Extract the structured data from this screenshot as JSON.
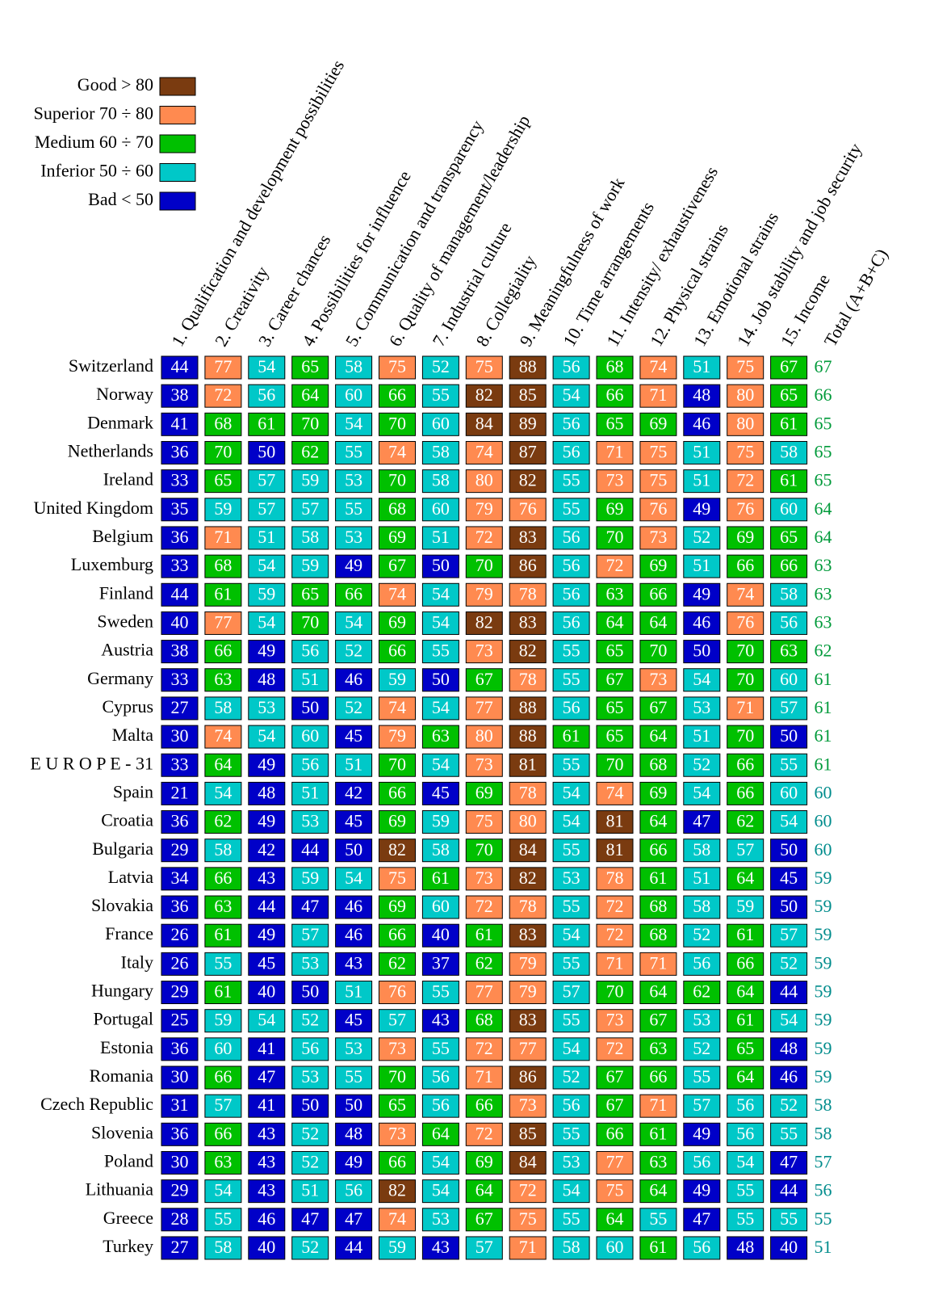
{
  "legend": [
    {
      "label": "Good > 80",
      "min": 80,
      "color": "#7a3b10"
    },
    {
      "label": "Superior 70 ÷ 80",
      "min": 70,
      "color": "#ff8a50"
    },
    {
      "label": "Medium 60 ÷ 70",
      "min": 60,
      "color": "#00c000"
    },
    {
      "label": "Inferior 50 ÷ 60",
      "min": 50,
      "color": "#00c8c8"
    },
    {
      "label": "Bad < 50",
      "color": "#0000c8"
    }
  ],
  "columns": [
    "1. Qualification and development possibilities",
    "2. Creativity",
    "3. Career chances",
    "4. Possibilities for influence",
    "5. Communication and transparency",
    "6. Quality of management/leadership",
    "7. Industrial culture",
    "8. Collegiality",
    "9. Meaningfulness of work",
    "10. Time arrangements",
    "11. Intensity/ exhaustiveness",
    "12. Physical strains",
    "13. Emotional strains",
    "14. Job stability and job security",
    "15. Income",
    "Total (A+B+C)"
  ],
  "total_colors": [
    {
      "min": 60,
      "color": "#009a3a"
    },
    {
      "color": "#008c8c"
    }
  ],
  "rows": [
    {
      "name": "Switzerland",
      "values": [
        44,
        77,
        54,
        65,
        58,
        75,
        52,
        75,
        88,
        56,
        68,
        74,
        51,
        75,
        67
      ],
      "total": 67
    },
    {
      "name": "Norway",
      "values": [
        38,
        72,
        56,
        64,
        60,
        66,
        55,
        82,
        85,
        54,
        66,
        71,
        48,
        80,
        65
      ],
      "total": 66
    },
    {
      "name": "Denmark",
      "values": [
        41,
        68,
        61,
        70,
        54,
        70,
        60,
        84,
        89,
        56,
        65,
        69,
        46,
        80,
        61
      ],
      "total": 65
    },
    {
      "name": "Netherlands",
      "values": [
        36,
        70,
        50,
        62,
        55,
        74,
        58,
        74,
        87,
        56,
        71,
        75,
        51,
        75,
        58
      ],
      "total": 65
    },
    {
      "name": "Ireland",
      "values": [
        33,
        65,
        57,
        59,
        53,
        70,
        58,
        80,
        82,
        55,
        73,
        75,
        51,
        72,
        61
      ],
      "total": 65
    },
    {
      "name": "United Kingdom",
      "values": [
        35,
        59,
        57,
        57,
        55,
        68,
        60,
        79,
        76,
        55,
        69,
        76,
        49,
        76,
        60
      ],
      "total": 64
    },
    {
      "name": "Belgium",
      "values": [
        36,
        71,
        51,
        58,
        53,
        69,
        51,
        72,
        83,
        56,
        70,
        73,
        52,
        69,
        65
      ],
      "total": 64
    },
    {
      "name": "Luxemburg",
      "values": [
        33,
        68,
        54,
        59,
        49,
        67,
        50,
        70,
        86,
        56,
        72,
        69,
        51,
        66,
        66
      ],
      "total": 63
    },
    {
      "name": "Finland",
      "values": [
        44,
        61,
        59,
        65,
        66,
        74,
        54,
        79,
        78,
        56,
        63,
        66,
        49,
        74,
        58
      ],
      "total": 63
    },
    {
      "name": "Sweden",
      "values": [
        40,
        77,
        54,
        70,
        54,
        69,
        54,
        82,
        83,
        56,
        64,
        64,
        46,
        76,
        56
      ],
      "total": 63
    },
    {
      "name": "Austria",
      "values": [
        38,
        66,
        49,
        56,
        52,
        66,
        55,
        73,
        82,
        55,
        65,
        70,
        50,
        70,
        63
      ],
      "total": 62
    },
    {
      "name": "Germany",
      "values": [
        33,
        63,
        48,
        51,
        46,
        59,
        50,
        67,
        78,
        55,
        67,
        73,
        54,
        70,
        60
      ],
      "total": 61
    },
    {
      "name": "Cyprus",
      "values": [
        27,
        58,
        53,
        50,
        52,
        74,
        54,
        77,
        88,
        56,
        65,
        67,
        53,
        71,
        57
      ],
      "total": 61
    },
    {
      "name": "Malta",
      "values": [
        30,
        74,
        54,
        60,
        45,
        79,
        63,
        80,
        88,
        61,
        65,
        64,
        51,
        70,
        50
      ],
      "total": 61
    },
    {
      "name": "E U R O P E - 31",
      "values": [
        33,
        64,
        49,
        56,
        51,
        70,
        54,
        73,
        81,
        55,
        70,
        68,
        52,
        66,
        55
      ],
      "total": 61
    },
    {
      "name": "Spain",
      "values": [
        21,
        54,
        48,
        51,
        42,
        66,
        45,
        69,
        78,
        54,
        74,
        69,
        54,
        66,
        60
      ],
      "total": 60
    },
    {
      "name": "Croatia",
      "values": [
        36,
        62,
        49,
        53,
        45,
        69,
        59,
        75,
        80,
        54,
        81,
        64,
        47,
        62,
        54
      ],
      "total": 60
    },
    {
      "name": "Bulgaria",
      "values": [
        29,
        58,
        42,
        44,
        50,
        82,
        58,
        70,
        84,
        55,
        81,
        66,
        58,
        57,
        50
      ],
      "total": 60
    },
    {
      "name": "Latvia",
      "values": [
        34,
        66,
        43,
        59,
        54,
        75,
        61,
        73,
        82,
        53,
        78,
        61,
        51,
        64,
        45
      ],
      "total": 59
    },
    {
      "name": "Slovakia",
      "values": [
        36,
        63,
        44,
        47,
        46,
        69,
        60,
        72,
        78,
        55,
        72,
        68,
        58,
        59,
        50
      ],
      "total": 59
    },
    {
      "name": "France",
      "values": [
        26,
        61,
        49,
        57,
        46,
        66,
        40,
        61,
        83,
        54,
        72,
        68,
        52,
        61,
        57
      ],
      "total": 59
    },
    {
      "name": "Italy",
      "values": [
        26,
        55,
        45,
        53,
        43,
        62,
        37,
        62,
        79,
        55,
        71,
        71,
        56,
        66,
        52
      ],
      "total": 59
    },
    {
      "name": "Hungary",
      "values": [
        29,
        61,
        40,
        50,
        51,
        76,
        55,
        77,
        79,
        57,
        70,
        64,
        62,
        64,
        44
      ],
      "total": 59
    },
    {
      "name": "Portugal",
      "values": [
        25,
        59,
        54,
        52,
        45,
        57,
        43,
        68,
        83,
        55,
        73,
        67,
        53,
        61,
        54
      ],
      "total": 59
    },
    {
      "name": "Estonia",
      "values": [
        36,
        60,
        41,
        56,
        53,
        73,
        55,
        72,
        77,
        54,
        72,
        63,
        52,
        65,
        48
      ],
      "total": 59
    },
    {
      "name": "Romania",
      "values": [
        30,
        66,
        47,
        53,
        55,
        70,
        56,
        71,
        86,
        52,
        67,
        66,
        55,
        64,
        46
      ],
      "total": 59
    },
    {
      "name": "Czech Republic",
      "values": [
        31,
        57,
        41,
        50,
        50,
        65,
        56,
        66,
        73,
        56,
        67,
        71,
        57,
        56,
        52
      ],
      "total": 58
    },
    {
      "name": "Slovenia",
      "values": [
        36,
        66,
        43,
        52,
        48,
        73,
        64,
        72,
        85,
        55,
        66,
        61,
        49,
        56,
        55
      ],
      "total": 58
    },
    {
      "name": "Poland",
      "values": [
        30,
        63,
        43,
        52,
        49,
        66,
        54,
        69,
        84,
        53,
        77,
        63,
        56,
        54,
        47
      ],
      "total": 57
    },
    {
      "name": "Lithuania",
      "values": [
        29,
        54,
        43,
        51,
        56,
        82,
        54,
        64,
        72,
        54,
        75,
        64,
        49,
        55,
        44
      ],
      "total": 56
    },
    {
      "name": "Greece",
      "values": [
        28,
        55,
        46,
        47,
        47,
        74,
        53,
        67,
        75,
        55,
        64,
        55,
        47,
        55,
        55
      ],
      "total": 55
    },
    {
      "name": "Turkey",
      "values": [
        27,
        58,
        40,
        52,
        44,
        59,
        43,
        57,
        71,
        58,
        60,
        61,
        56,
        48,
        40
      ],
      "total": 51
    }
  ]
}
